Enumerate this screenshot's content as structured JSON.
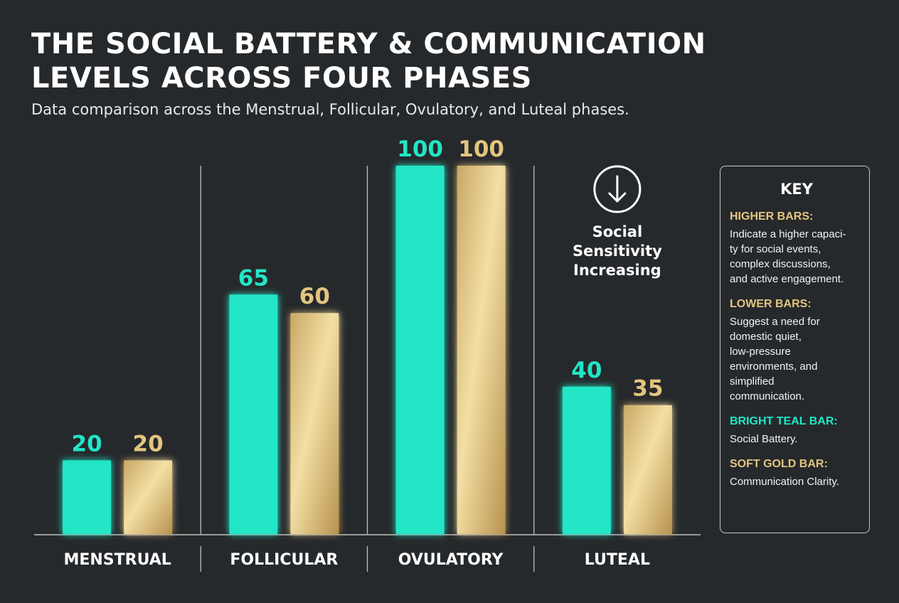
{
  "header": {
    "title_line1": "THE SOCIAL BATTERY & COMMUNICATION",
    "title_line2": "LEVELS ACROSS FOUR PHASES",
    "subtitle": "Data comparison across the Menstrual, Follicular, Ovulatory, and Luteal phases."
  },
  "colors": {
    "background": "#26292c",
    "teal": "#22e6c6",
    "gold": "#e3c57e"
  },
  "chart_data": {
    "type": "bar",
    "categories": [
      "MENSTRUAL",
      "FOLLICULAR",
      "OVULATORY",
      "LUTEAL"
    ],
    "series": [
      {
        "name": "Social Battery",
        "color": "#22e6c6",
        "values": [
          20,
          65,
          100,
          40
        ]
      },
      {
        "name": "Communication Clarity",
        "color": "#e3c57e",
        "values": [
          20,
          60,
          100,
          35
        ]
      }
    ],
    "ylim": [
      0,
      100
    ],
    "data_labels": true,
    "grid": false,
    "legend_placement": "right",
    "annotation": {
      "text_lines": [
        "Social",
        "Sensitivity",
        "Increasing"
      ],
      "icon": "arrow-down-circle-icon",
      "phase": "LUTEAL"
    }
  },
  "key": {
    "title": "KEY",
    "items": [
      {
        "heading": "HIGHER BARS:",
        "lines": [
          "Indicate a higher capaci-",
          "ty for social events,",
          "complex discussions,",
          "and active engagement."
        ]
      },
      {
        "heading": "LOWER BARS:",
        "lines": [
          "Suggest a need for",
          "domestic quiet,",
          "low-pressure",
          "environments, and",
          "simplified",
          "communication."
        ]
      },
      {
        "heading": "BRIGHT TEAL BAR:",
        "lines": [
          "Social Battery."
        ]
      },
      {
        "heading": "SOFT GOLD BAR:",
        "lines": [
          "Communication Clarity."
        ]
      }
    ]
  }
}
